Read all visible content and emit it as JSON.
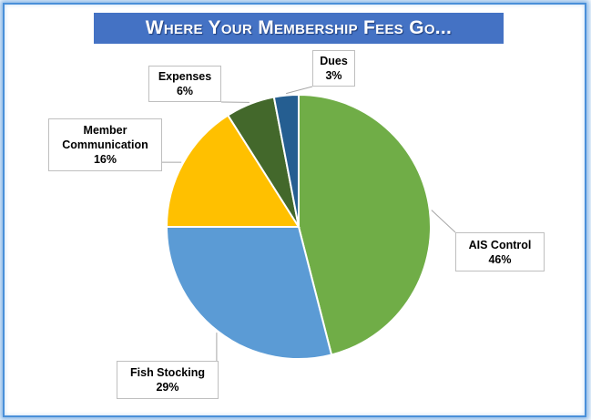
{
  "chart_data": {
    "type": "pie",
    "title": "Where Your Membership Fees Go...",
    "slices": [
      {
        "label": "AIS Control",
        "value": 46,
        "value_label": "46%",
        "color": "#70ad47"
      },
      {
        "label": "Fish Stocking",
        "value": 29,
        "value_label": "29%",
        "color": "#5b9bd5"
      },
      {
        "label": "Member Communication",
        "value": 16,
        "value_label": "16%",
        "color": "#ffc000"
      },
      {
        "label": "Expenses",
        "value": 6,
        "value_label": "6%",
        "color": "#43682b"
      },
      {
        "label": "Dues",
        "value": 3,
        "value_label": "3%",
        "color": "#255e91"
      }
    ],
    "legend": "none"
  }
}
